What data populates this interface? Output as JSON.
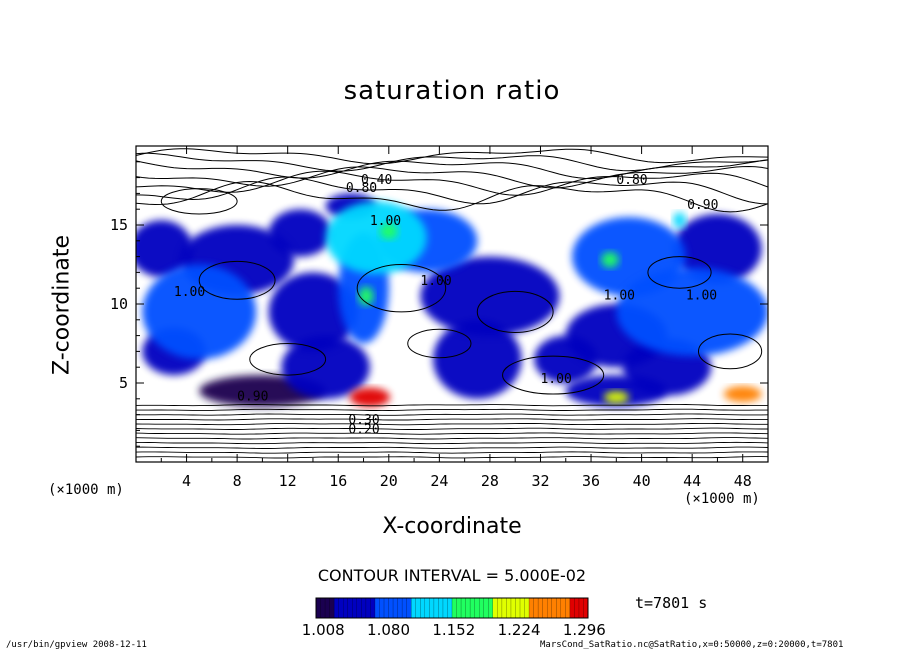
{
  "chart_data": {
    "type": "heatmap",
    "title": "saturation ratio",
    "xlabel": "X-coordinate",
    "ylabel": "Z-coordinate",
    "x_unit": "(×1000 m)",
    "xlim": [
      0,
      50
    ],
    "ylim": [
      0,
      20
    ],
    "x_ticks": [
      "4",
      "8",
      "12",
      "16",
      "20",
      "24",
      "28",
      "32",
      "36",
      "40",
      "44",
      "48"
    ],
    "y_ticks": [
      "5",
      "10",
      "15"
    ],
    "contour_interval": "CONTOUR INTERVAL = 5.000E-02",
    "contour_labels": [
      "0.80",
      "0.90",
      "1.00",
      "1.00",
      "1.00",
      "1.00",
      "1.00",
      "1.00",
      "0.90",
      "0.40",
      "0.30",
      "0.20",
      "0.80"
    ],
    "colorbar": {
      "ticks": [
        "1.008",
        "1.080",
        "1.152",
        "1.224",
        "1.296"
      ],
      "colors": [
        "#1a0050",
        "#0000c0",
        "#0050ff",
        "#00d8ff",
        "#20ff60",
        "#e0ff00",
        "#ff8000",
        "#e00000"
      ]
    },
    "time": "t=7801 s",
    "regions": [
      {
        "x": 2,
        "z": 13.5,
        "w": 2.5,
        "h": 1.8,
        "value": 1.03
      },
      {
        "x": 8,
        "z": 12.8,
        "w": 4.5,
        "h": 2.2,
        "value": 1.05
      },
      {
        "x": 13,
        "z": 14.5,
        "w": 2.5,
        "h": 1.5,
        "value": 1.04
      },
      {
        "x": 19,
        "z": 14.2,
        "w": 4,
        "h": 2.3,
        "value": 1.12
      },
      {
        "x": 23,
        "z": 14.0,
        "w": 4,
        "h": 2.0,
        "value": 1.1
      },
      {
        "x": 5,
        "z": 9.5,
        "w": 4.5,
        "h": 3.0,
        "value": 1.08
      },
      {
        "x": 14,
        "z": 9.5,
        "w": 3.5,
        "h": 2.5,
        "value": 1.05
      },
      {
        "x": 28,
        "z": 10.5,
        "w": 5.5,
        "h": 2.5,
        "value": 1.06
      },
      {
        "x": 39,
        "z": 13.0,
        "w": 4.5,
        "h": 2.5,
        "value": 1.07
      },
      {
        "x": 46,
        "z": 13.5,
        "w": 3.5,
        "h": 2.2,
        "value": 1.06
      },
      {
        "x": 44,
        "z": 9.5,
        "w": 6,
        "h": 2.8,
        "value": 1.1
      },
      {
        "x": 38,
        "z": 8.0,
        "w": 4,
        "h": 2.0,
        "value": 1.05
      },
      {
        "x": 3,
        "z": 7.0,
        "w": 2.5,
        "h": 1.5,
        "value": 1.04
      },
      {
        "x": 15,
        "z": 6.0,
        "w": 3.5,
        "h": 2.0,
        "value": 1.03
      },
      {
        "x": 27,
        "z": 6.5,
        "w": 3.5,
        "h": 2.5,
        "value": 1.05
      },
      {
        "x": 34,
        "z": 6.5,
        "w": 2.5,
        "h": 1.5,
        "value": 1.03
      },
      {
        "x": 42,
        "z": 6.0,
        "w": 3.5,
        "h": 1.8,
        "value": 1.06
      },
      {
        "x": 18,
        "z": 11.0,
        "w": 2,
        "h": 3.5,
        "value": 1.09
      },
      {
        "x": 17,
        "z": 16.2,
        "w": 2,
        "h": 0.8,
        "value": 1.04
      },
      {
        "x": 10,
        "z": 4.5,
        "w": 5,
        "h": 1.0,
        "value": 1.02
      },
      {
        "x": 38,
        "z": 4.5,
        "w": 4,
        "h": 1.0,
        "value": 1.03
      },
      {
        "x": 18.5,
        "z": 4.1,
        "w": 1.6,
        "h": 0.6,
        "value": 1.29
      },
      {
        "x": 38,
        "z": 4.1,
        "w": 1.0,
        "h": 0.4,
        "value": 1.2
      },
      {
        "x": 48,
        "z": 4.3,
        "w": 1.5,
        "h": 0.5,
        "value": 1.27
      },
      {
        "x": 18.2,
        "z": 10.5,
        "w": 0.6,
        "h": 0.6,
        "value": 1.18
      },
      {
        "x": 37.5,
        "z": 12.8,
        "w": 0.7,
        "h": 0.5,
        "value": 1.16
      },
      {
        "x": 43,
        "z": 15.3,
        "w": 0.5,
        "h": 0.5,
        "value": 1.14
      },
      {
        "x": 20,
        "z": 14.6,
        "w": 0.7,
        "h": 0.5,
        "value": 1.16
      }
    ]
  },
  "footer": {
    "left": "/usr/bin/gpview   2008-12-11",
    "right": "MarsCond_SatRatio.nc@SatRatio,x=0:50000,z=0:20000,t=7801"
  }
}
